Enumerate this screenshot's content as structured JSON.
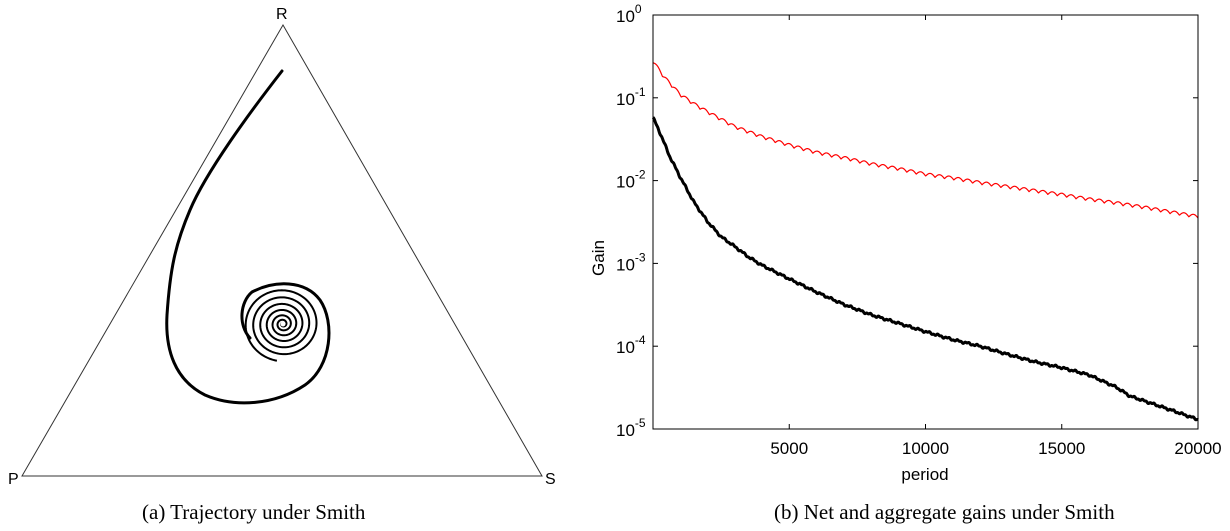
{
  "captions": {
    "a": "(a) Trajectory under Smith",
    "b": "(b) Net and aggregate gains under Smith"
  },
  "chart_data": [
    {
      "type": "ternary",
      "vertices": [
        "R",
        "P",
        "S"
      ],
      "trajectory": {
        "start": {
          "R": 0.91,
          "P": 0.05,
          "S": 0.04
        },
        "end": {
          "R": 0.333,
          "P": 0.333,
          "S": 0.333
        },
        "shape": "clockwise inward spiral converging to the barycenter",
        "color": "#000000"
      }
    },
    {
      "type": "line",
      "ylabel": "Gain",
      "xlabel": "period",
      "yscale": "log",
      "ylim": [
        1e-05,
        1
      ],
      "xlim": [
        0,
        20000
      ],
      "xticks": [
        5000,
        10000,
        15000,
        20000
      ],
      "yticks": [
        {
          "value": 1,
          "base": "10",
          "exp": "0"
        },
        {
          "value": 0.1,
          "base": "10",
          "exp": "-1"
        },
        {
          "value": 0.01,
          "base": "10",
          "exp": "-2"
        },
        {
          "value": 0.001,
          "base": "10",
          "exp": "-3"
        },
        {
          "value": 0.0001,
          "base": "10",
          "exp": "-4"
        },
        {
          "value": 1e-05,
          "base": "10",
          "exp": "-5"
        }
      ],
      "series": [
        {
          "color": "#ff0000",
          "x": [
            0,
            400,
            1000,
            1500,
            2000,
            3000,
            4000,
            5000,
            6000,
            7000,
            8000,
            9000,
            10000,
            11000,
            12000,
            13000,
            14000,
            15000,
            16000,
            17000,
            18000,
            19000,
            20000
          ],
          "values": [
            0.28,
            0.18,
            0.11,
            0.085,
            0.068,
            0.045,
            0.034,
            0.027,
            0.022,
            0.019,
            0.016,
            0.014,
            0.012,
            0.0108,
            0.0095,
            0.0085,
            0.0076,
            0.0068,
            0.006,
            0.0054,
            0.0048,
            0.0042,
            0.0037
          ]
        },
        {
          "color": "#000000",
          "x": [
            0,
            300,
            600,
            1000,
            1500,
            2000,
            2500,
            3000,
            3500,
            4000,
            5000,
            6000,
            7000,
            8000,
            9000,
            10000,
            11000,
            12000,
            13000,
            14000,
            15000,
            16000,
            17000,
            17500,
            18000,
            19000,
            20000
          ],
          "values": [
            0.058,
            0.035,
            0.02,
            0.011,
            0.0055,
            0.0032,
            0.0021,
            0.0016,
            0.0012,
            0.00095,
            0.00065,
            0.00045,
            0.00032,
            0.00024,
            0.00019,
            0.00015,
            0.00012,
            0.0001,
            8e-05,
            6.5e-05,
            5.5e-05,
            4.5e-05,
            3.2e-05,
            2.5e-05,
            2.2e-05,
            1.7e-05,
            1.3e-05
          ]
        }
      ]
    }
  ]
}
